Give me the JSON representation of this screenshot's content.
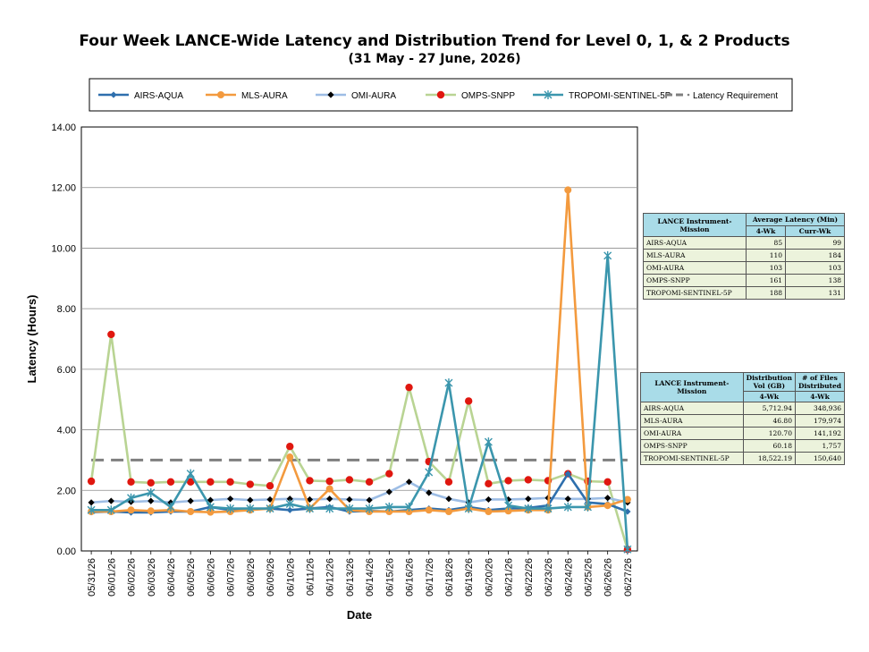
{
  "title": "Four Week LANCE-Wide Latency and Distribution Trend for Level 0, 1, & 2 Products",
  "subtitle": "(31 May  - 27 June, 2026)",
  "chart_data": {
    "type": "line",
    "title": "Four Week LANCE-Wide Latency and Distribution Trend for Level 0, 1, & 2 Products",
    "subtitle": "(31 May  - 27 June, 2026)",
    "xlabel": "Date",
    "ylabel": "Latency (Hours)",
    "ylim": [
      0,
      14
    ],
    "yticks": [
      "0.00",
      "2.00",
      "4.00",
      "6.00",
      "8.00",
      "10.00",
      "12.00",
      "14.00"
    ],
    "grid": "horizontal",
    "legend_position": "top",
    "categories": [
      "05/31/26",
      "06/01/26",
      "06/02/26",
      "06/03/26",
      "06/04/26",
      "06/05/26",
      "06/06/26",
      "06/07/26",
      "06/08/26",
      "06/09/26",
      "06/10/26",
      "06/11/26",
      "06/12/26",
      "06/13/26",
      "06/14/26",
      "06/15/26",
      "06/16/26",
      "06/17/26",
      "06/18/26",
      "06/19/26",
      "06/20/26",
      "06/21/26",
      "06/22/26",
      "06/23/26",
      "06/24/26",
      "06/25/26",
      "06/26/26",
      "06/27/26"
    ],
    "series": [
      {
        "name": "AIRS-AQUA",
        "color": "#2e6fad",
        "marker": "diamond",
        "values": [
          1.28,
          1.3,
          1.27,
          1.27,
          1.3,
          1.3,
          1.45,
          1.35,
          1.38,
          1.4,
          1.35,
          1.4,
          1.45,
          1.3,
          1.32,
          1.3,
          1.35,
          1.4,
          1.35,
          1.45,
          1.35,
          1.4,
          1.42,
          1.5,
          2.55,
          1.6,
          1.55,
          1.3
        ]
      },
      {
        "name": "MLS-AURA",
        "color": "#f39a3e",
        "marker": "circle",
        "values": [
          1.3,
          1.3,
          1.35,
          1.32,
          1.35,
          1.3,
          1.28,
          1.3,
          1.35,
          1.4,
          3.1,
          1.4,
          2.05,
          1.35,
          1.3,
          1.3,
          1.3,
          1.35,
          1.3,
          1.4,
          1.3,
          1.32,
          1.35,
          1.35,
          11.92,
          1.45,
          1.5,
          1.7
        ]
      },
      {
        "name": "OMI-AURA",
        "color": "#9dbde5",
        "marker": "diamond-black",
        "values": [
          1.6,
          1.65,
          1.62,
          1.65,
          1.6,
          1.65,
          1.68,
          1.72,
          1.68,
          1.7,
          1.72,
          1.7,
          1.72,
          1.7,
          1.68,
          1.95,
          2.28,
          1.92,
          1.72,
          1.6,
          1.7,
          1.7,
          1.72,
          1.75,
          1.72,
          1.72,
          1.75,
          1.6
        ]
      },
      {
        "name": "OMPS-SNPP",
        "color": "#b9d493",
        "marker": "circle-red",
        "values": [
          2.3,
          7.15,
          2.28,
          2.25,
          2.28,
          2.28,
          2.28,
          2.28,
          2.2,
          2.15,
          3.45,
          2.32,
          2.3,
          2.35,
          2.28,
          2.55,
          5.4,
          2.95,
          2.28,
          4.95,
          2.22,
          2.32,
          2.35,
          2.32,
          2.55,
          2.3,
          2.28,
          0.05
        ]
      },
      {
        "name": "TROPOMI-SENTINEL-5P",
        "color": "#3b96ad",
        "marker": "x",
        "values": [
          1.35,
          1.35,
          1.75,
          1.92,
          1.45,
          2.55,
          1.45,
          1.4,
          1.4,
          1.4,
          1.55,
          1.4,
          1.4,
          1.4,
          1.4,
          1.45,
          1.45,
          2.6,
          5.55,
          1.4,
          3.6,
          1.5,
          1.4,
          1.4,
          1.45,
          1.45,
          9.75,
          0.05
        ]
      },
      {
        "name": "Latency Requirement",
        "color": "#7f7f7f",
        "marker": "dash",
        "values": [
          3,
          3,
          3,
          3,
          3,
          3,
          3,
          3,
          3,
          3,
          3,
          3,
          3,
          3,
          3,
          3,
          3,
          3,
          3,
          3,
          3,
          3,
          3,
          3,
          3,
          3,
          3,
          3
        ]
      }
    ]
  },
  "latency_table": {
    "header_col1": "LANCE Instrument-Mission",
    "header_col2": "Average Latency (Min)",
    "sub_col2": "4-Wk",
    "sub_col3": "Curr-Wk",
    "rows": [
      {
        "name": "AIRS-AQUA",
        "four_wk": "85",
        "curr_wk": "99"
      },
      {
        "name": "MLS-AURA",
        "four_wk": "110",
        "curr_wk": "184"
      },
      {
        "name": "OMI-AURA",
        "four_wk": "103",
        "curr_wk": "103"
      },
      {
        "name": "OMPS-SNPP",
        "four_wk": "161",
        "curr_wk": "138"
      },
      {
        "name": "TROPOMI-SENTINEL-5P",
        "four_wk": "188",
        "curr_wk": "131"
      }
    ]
  },
  "distribution_table": {
    "header_col1": "LANCE Instrument-Mission",
    "header_col2": "Distribution Vol (GB)",
    "header_col3": "# of Files Distributed",
    "sub_col2": "4-Wk",
    "sub_col3": "4-Wk",
    "rows": [
      {
        "name": "AIRS-AQUA",
        "vol": "5,712.94",
        "files": "348,936"
      },
      {
        "name": "MLS-AURA",
        "vol": "46.80",
        "files": "179,974"
      },
      {
        "name": "OMI-AURA",
        "vol": "120.70",
        "files": "141,192"
      },
      {
        "name": "OMPS-SNPP",
        "vol": "60.18",
        "files": "1,757"
      },
      {
        "name": "TROPOMI-SENTINEL-5P",
        "vol": "18,522.19",
        "files": "150,640"
      }
    ]
  }
}
